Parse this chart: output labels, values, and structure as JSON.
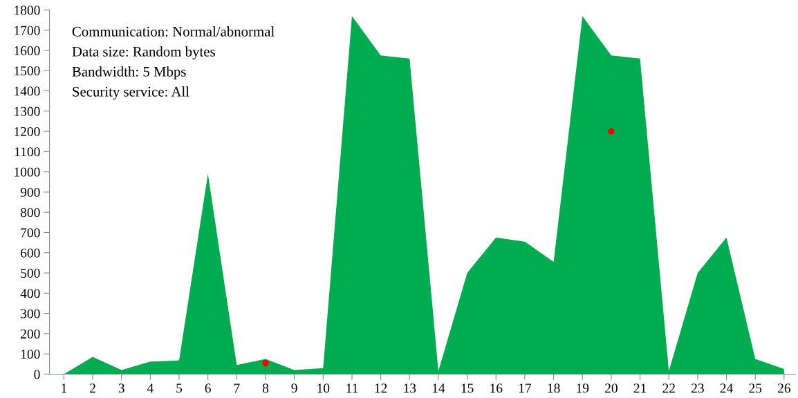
{
  "chart_data": {
    "type": "area",
    "x": [
      1,
      2,
      3,
      4,
      5,
      6,
      7,
      8,
      9,
      10,
      11,
      12,
      13,
      14,
      15,
      16,
      17,
      18,
      19,
      20,
      21,
      22,
      23,
      24,
      25,
      26
    ],
    "series": [
      {
        "color": "#00ac4f",
        "values": [
          0,
          85,
          20,
          62,
          68,
          990,
          45,
          75,
          20,
          30,
          1770,
          1575,
          1560,
          15,
          500,
          675,
          655,
          555,
          1770,
          1575,
          1560,
          15,
          500,
          675,
          75,
          25
        ]
      },
      {
        "type": "scatter",
        "marker": "circle",
        "color": "#ff0000",
        "x": [
          8,
          20
        ],
        "values": [
          55,
          1200
        ]
      }
    ],
    "xlim": [
      0.5,
      26.4
    ],
    "xticks": [
      1,
      2,
      3,
      4,
      5,
      6,
      7,
      8,
      9,
      10,
      11,
      12,
      13,
      14,
      15,
      16,
      17,
      18,
      19,
      20,
      21,
      22,
      23,
      24,
      25,
      26
    ],
    "ylim": [
      0,
      1800
    ],
    "yticks": [
      0,
      100,
      200,
      300,
      400,
      500,
      600,
      700,
      800,
      900,
      1000,
      1100,
      1200,
      1300,
      1400,
      1500,
      1600,
      1700,
      1800
    ],
    "grid": false,
    "annotations": [
      "Communication: Normal/abnormal",
      "Data size: Random bytes",
      "Bandwidth: 5 Mbps",
      "Security service: All"
    ]
  }
}
